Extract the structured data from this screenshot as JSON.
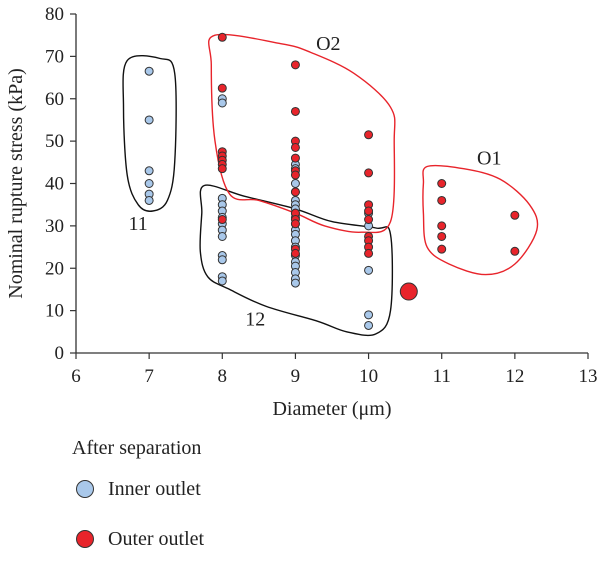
{
  "chart_data": {
    "type": "scatter",
    "xlabel": "Diameter (μm)",
    "ylabel": "Nominal rupture stress (kPa)",
    "xlim": [
      6,
      13
    ],
    "ylim": [
      0,
      80
    ],
    "xticks": [
      6,
      7,
      8,
      9,
      10,
      11,
      12,
      13
    ],
    "yticks": [
      0,
      10,
      20,
      30,
      40,
      50,
      60,
      70,
      80
    ],
    "grid": false,
    "legend": {
      "title": "After separation",
      "position": "below-left",
      "entries": [
        "Inner outlet",
        "Outer outlet"
      ]
    },
    "series": [
      {
        "name": "Inner outlet",
        "color": "#a9c8ea",
        "points": [
          [
            7,
            66.5
          ],
          [
            7,
            55
          ],
          [
            7,
            43
          ],
          [
            7,
            40
          ],
          [
            7,
            37.5
          ],
          [
            7,
            36
          ],
          [
            8,
            60
          ],
          [
            8,
            59
          ],
          [
            8,
            36.5
          ],
          [
            8,
            35
          ],
          [
            8,
            33.5
          ],
          [
            8,
            32
          ],
          [
            8,
            30.5
          ],
          [
            8,
            29
          ],
          [
            8,
            27.5
          ],
          [
            8,
            23
          ],
          [
            8,
            22
          ],
          [
            8,
            18
          ],
          [
            8,
            17
          ],
          [
            9,
            44.5
          ],
          [
            9,
            43.5
          ],
          [
            9,
            40
          ],
          [
            9,
            38
          ],
          [
            9,
            36
          ],
          [
            9,
            35
          ],
          [
            9,
            34
          ],
          [
            9,
            33
          ],
          [
            9,
            32
          ],
          [
            9,
            30.5
          ],
          [
            9,
            29
          ],
          [
            9,
            28
          ],
          [
            9,
            26.5
          ],
          [
            9,
            25
          ],
          [
            9,
            23
          ],
          [
            9,
            21.5
          ],
          [
            9,
            20.5
          ],
          [
            9,
            19
          ],
          [
            9,
            17.5
          ],
          [
            9,
            16.5
          ],
          [
            10,
            33
          ],
          [
            10,
            30
          ],
          [
            10,
            19.5
          ],
          [
            10,
            9
          ],
          [
            10,
            6.5
          ]
        ]
      },
      {
        "name": "Outer outlet",
        "color": "#e8242b",
        "points": [
          [
            8,
            74.5
          ],
          [
            8,
            62.5
          ],
          [
            8,
            47.5
          ],
          [
            8,
            46.5
          ],
          [
            8,
            45.5
          ],
          [
            8,
            44.5
          ],
          [
            8,
            43.5
          ],
          [
            8,
            31.5
          ],
          [
            9,
            68
          ],
          [
            9,
            57
          ],
          [
            9,
            50
          ],
          [
            9,
            48.5
          ],
          [
            9,
            46
          ],
          [
            9,
            43
          ],
          [
            9,
            42
          ],
          [
            9,
            38
          ],
          [
            9,
            33
          ],
          [
            9,
            31.5
          ],
          [
            9,
            30.5
          ],
          [
            9,
            24.5
          ],
          [
            9,
            23.5
          ],
          [
            10,
            51.5
          ],
          [
            10,
            42.5
          ],
          [
            10,
            35
          ],
          [
            10,
            33.5
          ],
          [
            10,
            31.5
          ],
          [
            10,
            27.5
          ],
          [
            10,
            26.5
          ],
          [
            10,
            25
          ],
          [
            10,
            23.5
          ],
          [
            11,
            40
          ],
          [
            11,
            36
          ],
          [
            11,
            30
          ],
          [
            11,
            27.5
          ],
          [
            11,
            24.5
          ],
          [
            12,
            32.5
          ],
          [
            12,
            24
          ]
        ]
      },
      {
        "name": "",
        "color": "#e8242b",
        "size": "large",
        "points": [
          [
            10.55,
            14.5
          ]
        ]
      }
    ],
    "groups": [
      {
        "label": "11",
        "color": "#111111",
        "outline": [
          [
            6.7,
            69
          ],
          [
            7.15,
            69.5
          ],
          [
            7.35,
            66
          ],
          [
            7.35,
            45
          ],
          [
            7.25,
            36
          ],
          [
            7.05,
            33.5
          ],
          [
            6.85,
            35
          ],
          [
            6.7,
            42
          ],
          [
            6.65,
            58
          ]
        ]
      },
      {
        "label": "12",
        "color": "#111111",
        "outline": [
          [
            7.75,
            39.5
          ],
          [
            8.3,
            37
          ],
          [
            9.0,
            34
          ],
          [
            9.5,
            31
          ],
          [
            10.1,
            29.5
          ],
          [
            10.3,
            28
          ],
          [
            10.3,
            10
          ],
          [
            10.1,
            4.5
          ],
          [
            9.7,
            5
          ],
          [
            9.3,
            7.5
          ],
          [
            8.6,
            11
          ],
          [
            8.1,
            15
          ],
          [
            7.8,
            18
          ],
          [
            7.7,
            24
          ],
          [
            7.72,
            33
          ]
        ]
      },
      {
        "label": "O2",
        "color": "#e8242b",
        "outline": [
          [
            7.9,
            75
          ],
          [
            8.8,
            73
          ],
          [
            9.2,
            71
          ],
          [
            9.8,
            66
          ],
          [
            10.3,
            58
          ],
          [
            10.35,
            50
          ],
          [
            10.3,
            31
          ],
          [
            9.9,
            28.5
          ],
          [
            9.4,
            30
          ],
          [
            9.0,
            33
          ],
          [
            8.5,
            36
          ],
          [
            8.1,
            37.5
          ],
          [
            7.9,
            50
          ],
          [
            7.85,
            68
          ]
        ]
      },
      {
        "label": "O1",
        "color": "#e8242b",
        "outline": [
          [
            10.8,
            44
          ],
          [
            11.3,
            43.5
          ],
          [
            11.8,
            41
          ],
          [
            12.2,
            35
          ],
          [
            12.3,
            29
          ],
          [
            12.0,
            21
          ],
          [
            11.6,
            18.5
          ],
          [
            11.1,
            21
          ],
          [
            10.8,
            25
          ],
          [
            10.75,
            33
          ],
          [
            10.75,
            40
          ]
        ]
      }
    ],
    "group_labels": [
      "11",
      "12",
      "O2",
      "O1"
    ]
  }
}
